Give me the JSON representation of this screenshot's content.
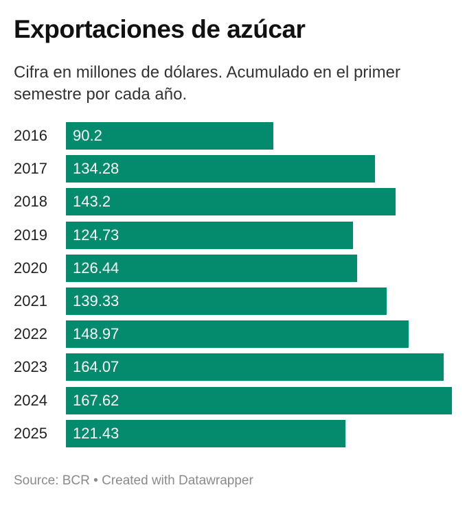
{
  "chart_data": {
    "type": "bar",
    "orientation": "horizontal",
    "title": "Exportaciones de azúcar",
    "subtitle": "Cifra en millones de dólares. Acumulado en el primer semestre por cada año.",
    "categories": [
      "2016",
      "2017",
      "2018",
      "2019",
      "2020",
      "2021",
      "2022",
      "2023",
      "2024",
      "2025"
    ],
    "values": [
      90.2,
      134.28,
      143.2,
      124.73,
      126.44,
      139.33,
      148.97,
      164.07,
      167.62,
      121.43
    ],
    "value_labels": [
      "90.2",
      "134.28",
      "143.2",
      "124.73",
      "126.44",
      "139.33",
      "148.97",
      "164.07",
      "167.62",
      "121.43"
    ],
    "xlim": [
      0,
      167.62
    ],
    "grid": false,
    "bar_color": "#048a6c"
  },
  "footer": {
    "source": "Source: BCR • Created with Datawrapper"
  }
}
